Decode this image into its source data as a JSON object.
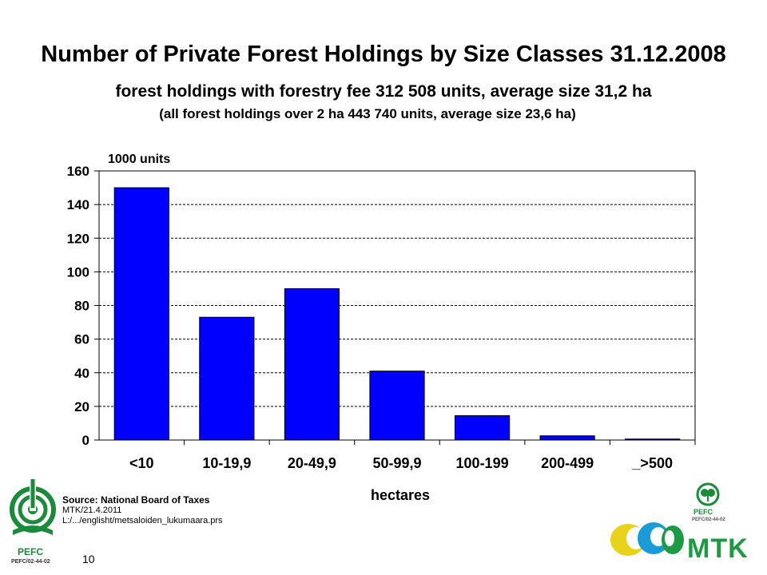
{
  "header": {
    "title": "Number of Private Forest Holdings by Size Classes 31.12.2008",
    "subtitle": "forest holdings with forestry fee 312 508 units, average size 31,2 ha",
    "subtitle2": "(all forest holdings over 2 ha 443 740 units, average size 23,6 ha)"
  },
  "chart_data": {
    "type": "bar",
    "categories": [
      "<10",
      "10-19,9",
      "20-49,9",
      "50-99,9",
      "100-199",
      "200-499",
      "_>500"
    ],
    "values": [
      150,
      73,
      90,
      41,
      14.5,
      2.5,
      0.6
    ],
    "ylabel": "1000 units",
    "xlabel": "hectares",
    "ylim": [
      0,
      160
    ],
    "yticks": [
      0,
      20,
      40,
      60,
      80,
      100,
      120,
      140,
      160
    ],
    "grid": true,
    "bar_color": "#0000ff"
  },
  "footer": {
    "source": "Source: National Board of Taxes",
    "date_line": "MTK/21.4.2011",
    "path_line": "L:/.../englisht/metsaloiden_lukumaara.prs",
    "page_number": "10",
    "pefc_left_label": "PEFC",
    "pefc_left_code": "PEFC/02-44-02",
    "pefc_right_label": "PEFC",
    "pefc_right_code": "PEFC/02-44-02",
    "mtk_logo": "MTK"
  },
  "icons": [
    "pefc-tree-logo-icon",
    "mtk-logo-icon"
  ],
  "colors": {
    "pefc_green": "#1b8a3a",
    "mtk_green": "#1e9a44",
    "mtk_blue": "#1a9bd7",
    "mtk_yellow": "#e8d21a"
  }
}
